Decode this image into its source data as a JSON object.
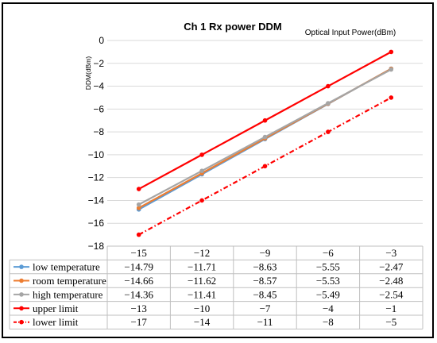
{
  "chart_data": {
    "type": "line",
    "title": "Ch 1 Rx power DDM",
    "xlabel": "Optical Input Power(dBm)",
    "ylabel": "DDM(dBm)",
    "categories": [
      "-15",
      "-12",
      "-9",
      "-6",
      "-3"
    ],
    "y_ticks": [
      "0",
      "-2",
      "-4",
      "-6",
      "-8",
      "-10",
      "-12",
      "-14",
      "-16",
      "-18"
    ],
    "ylim": [
      -18,
      0
    ],
    "grid": true,
    "legend": "data-table",
    "series": [
      {
        "name": "low temperature",
        "color": "#5b9bd5",
        "style": "solid-marker",
        "values": [
          -14.79,
          -11.71,
          -8.63,
          -5.55,
          -2.47
        ],
        "labels": [
          "-14.79",
          "-11.71",
          "-8.63",
          "-5.55",
          "-2.47"
        ]
      },
      {
        "name": "room temperature",
        "color": "#ed7d31",
        "style": "solid-marker",
        "values": [
          -14.66,
          -11.62,
          -8.57,
          -5.53,
          -2.48
        ],
        "labels": [
          "-14.66",
          "-11.62",
          "-8.57",
          "-5.53",
          "-2.48"
        ]
      },
      {
        "name": "high temperature",
        "color": "#a5a5a5",
        "style": "solid-marker",
        "values": [
          -14.36,
          -11.41,
          -8.45,
          -5.49,
          -2.54
        ],
        "labels": [
          "-14.36",
          "-11.41",
          "-8.45",
          "-5.49",
          "-2.54"
        ]
      },
      {
        "name": "upper limit",
        "color": "#ff0000",
        "style": "solid-marker",
        "values": [
          -13,
          -10,
          -7,
          -4,
          -1
        ],
        "labels": [
          "-13",
          "-10",
          "-7",
          "-4",
          "-1"
        ]
      },
      {
        "name": "lower limit",
        "color": "#ff0000",
        "style": "dashdot-marker",
        "values": [
          -17,
          -14,
          -11,
          -8,
          -5
        ],
        "labels": [
          "-17",
          "-14",
          "-11",
          "-8",
          "-5"
        ]
      }
    ]
  }
}
